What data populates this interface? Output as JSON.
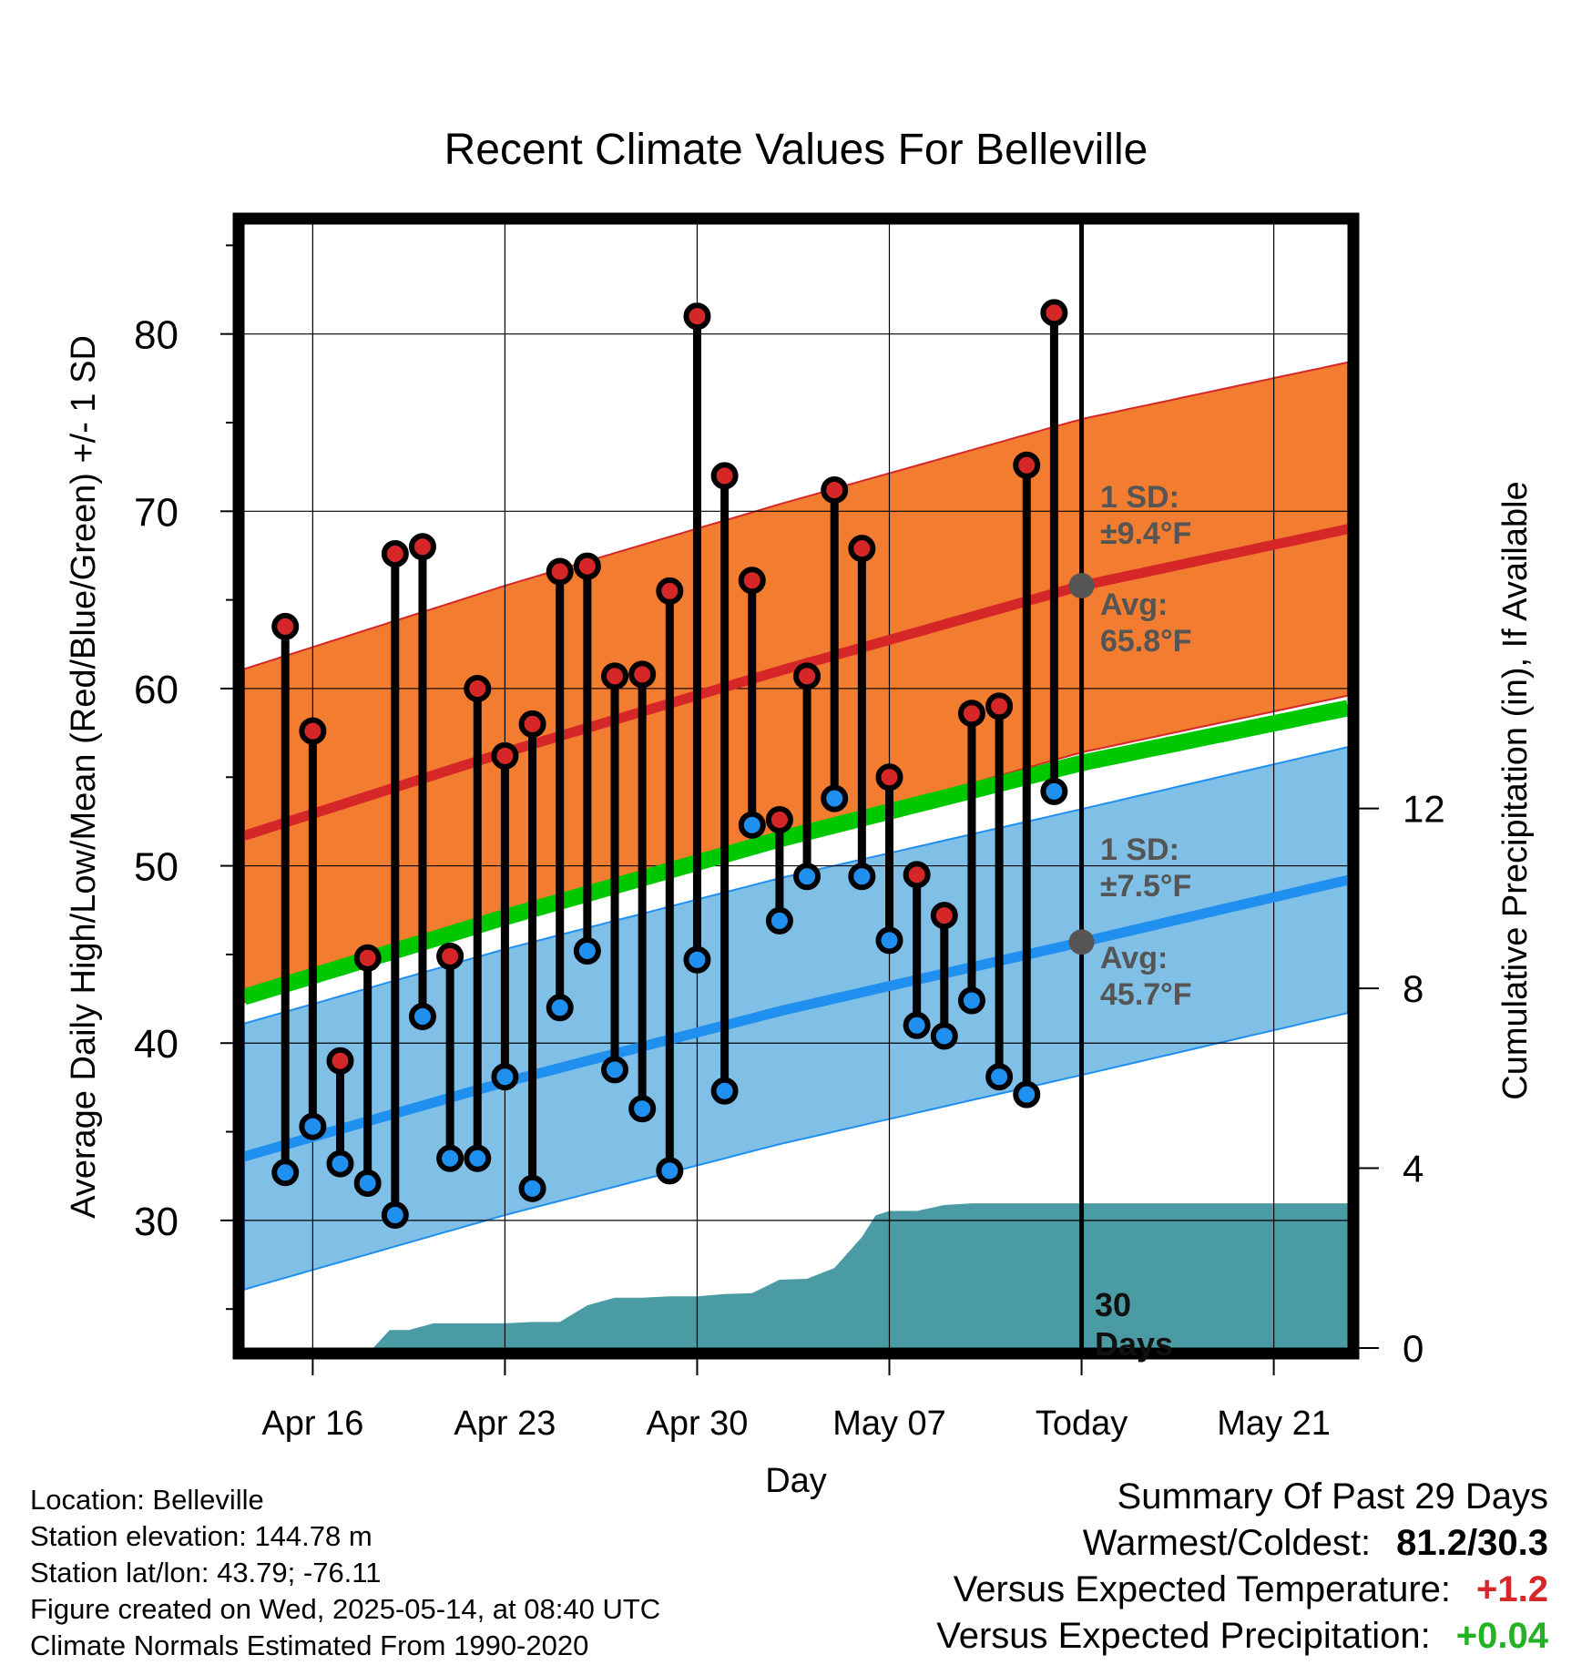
{
  "chart_data": {
    "type": "line",
    "title": "Recent Climate Values For Belleville",
    "xlabel": "Day",
    "ylabel": "Average Daily High/Low/Mean (Red/Blue/Green) +/- 1 SD",
    "y2label": "Cumulative Precipitation (in), If Available",
    "x_ticks": [
      "Apr 16",
      "Apr 23",
      "Apr 30",
      "May 07",
      "Today",
      "May 21"
    ],
    "x_tick_days": [
      3,
      10,
      17,
      24,
      31,
      38
    ],
    "y_ticks": [
      30,
      40,
      50,
      60,
      70,
      80
    ],
    "y2_ticks": [
      0,
      4,
      8,
      12
    ],
    "xlim": [
      0.5,
      40.7
    ],
    "ylim": [
      22.8,
      86.2
    ],
    "y2lim": [
      0,
      25
    ],
    "grid": true,
    "today_day": 31,
    "today_marker": "30 Days",
    "normals": {
      "high_mean": [
        [
          0.5,
          51.7
        ],
        [
          10,
          56.4
        ],
        [
          20,
          61.0
        ],
        [
          31,
          65.8
        ],
        [
          40.7,
          69.0
        ]
      ],
      "high_sd": 9.4,
      "low_mean": [
        [
          0.5,
          33.6
        ],
        [
          10,
          37.8
        ],
        [
          20,
          41.8
        ],
        [
          31,
          45.7
        ],
        [
          40.7,
          49.2
        ]
      ],
      "low_sd": 7.5,
      "daily_mean": [
        [
          0.5,
          42.6
        ],
        [
          10,
          47.1
        ],
        [
          20,
          51.5
        ],
        [
          31,
          55.8
        ],
        [
          40.7,
          58.9
        ]
      ]
    },
    "annotations": {
      "high_sd_label": "1 SD:",
      "high_sd_value": "±9.4°F",
      "high_avg_label": "Avg:",
      "high_avg_value": "65.8°F",
      "low_sd_label": "1 SD:",
      "low_sd_value": "±7.5°F",
      "low_avg_label": "Avg:",
      "low_avg_value": "45.7°F"
    },
    "series": [
      {
        "name": "High",
        "days": [
          2,
          3,
          4,
          5,
          6,
          7,
          8,
          9,
          10,
          11,
          12,
          13,
          14,
          15,
          16,
          17,
          18,
          19,
          20,
          21,
          22,
          23,
          24,
          25,
          26,
          27,
          28,
          29,
          30
        ],
        "values": [
          63.5,
          57.6,
          39.0,
          44.8,
          67.6,
          68.0,
          44.9,
          60.0,
          56.2,
          58.0,
          66.6,
          66.9,
          60.7,
          60.8,
          65.5,
          81.0,
          72.0,
          66.1,
          52.6,
          60.7,
          71.2,
          67.9,
          55.0,
          49.5,
          47.2,
          58.6,
          59.0,
          72.6,
          81.2
        ]
      },
      {
        "name": "Low",
        "days": [
          2,
          3,
          4,
          5,
          6,
          7,
          8,
          9,
          10,
          11,
          12,
          13,
          14,
          15,
          16,
          17,
          18,
          19,
          20,
          21,
          22,
          23,
          24,
          25,
          26,
          27,
          28,
          29,
          30
        ],
        "values": [
          32.7,
          35.3,
          33.2,
          32.1,
          30.3,
          41.5,
          33.5,
          33.5,
          38.1,
          31.8,
          42.0,
          45.2,
          38.5,
          36.3,
          32.8,
          44.7,
          37.3,
          52.3,
          46.9,
          49.4,
          53.8,
          49.4,
          45.8,
          41.0,
          40.4,
          42.4,
          38.1,
          37.1,
          54.2
        ]
      },
      {
        "name": "Cumulative Precipitation",
        "days": [
          5.2,
          5.8,
          6.5,
          7.4,
          8.2,
          9,
          10,
          11,
          12,
          13,
          14,
          15,
          16,
          17,
          18,
          19,
          20,
          21,
          22,
          23,
          23.5,
          24,
          25,
          26,
          27,
          31,
          40.7
        ],
        "values": [
          0,
          0.4,
          0.4,
          0.55,
          0.55,
          0.55,
          0.55,
          0.58,
          0.58,
          0.95,
          1.12,
          1.12,
          1.15,
          1.15,
          1.2,
          1.22,
          1.52,
          1.54,
          1.78,
          2.47,
          2.95,
          3.05,
          3.05,
          3.18,
          3.22,
          3.22,
          3.22
        ]
      }
    ]
  },
  "info": {
    "location": "Location: Belleville",
    "elevation": "Station elevation: 144.78 m",
    "latlon": "Station lat/lon: 43.79; -76.11",
    "created": "Figure created on Wed, 2025-05-14, at 08:40 UTC",
    "normals_note": "Climate Normals Estimated From 1990-2020"
  },
  "summary": {
    "heading": "Summary Of Past 29 Days",
    "warmest_label": "Warmest/Coldest:",
    "warmest_value": "81.2/30.3",
    "temp_label": "Versus Expected Temperature:",
    "temp_value": "+1.2",
    "precip_label": "Versus Expected Precipitation:",
    "precip_value": "+0.04"
  },
  "colors": {
    "high_band": "#f27c30",
    "high_line": "#d62728",
    "low_band": "#80bfe6",
    "low_line": "#1f8ff0",
    "mean_line": "#00c800",
    "precip_fill": "#4a9ba4",
    "high_dot": "#d62728",
    "low_dot": "#1f8ff0",
    "annotation_text": "#555555",
    "avg_marker": "#555555",
    "temp_value": "#d62728",
    "precip_value": "#22b222"
  }
}
